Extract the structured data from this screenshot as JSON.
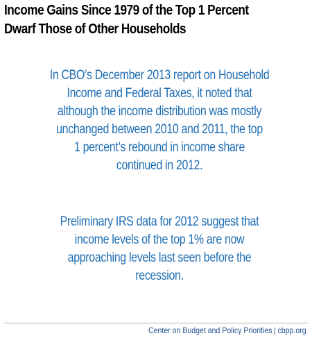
{
  "title": {
    "line1": "Income Gains Since 1979 of the Top 1 Percent",
    "line2": "Dwarf Those of Other Households"
  },
  "paragraph1": {
    "lines": [
      "In CBO’s December 2013 report on Household",
      "Income and Federal Taxes, it noted that",
      "although the income distribution was mostly",
      "unchanged between 2010 and 2011, the top",
      "1 percent’s rebound in income share",
      "continued in 2012."
    ]
  },
  "paragraph2": {
    "lines": [
      "Preliminary IRS data for 2012 suggest that",
      "income levels of the top 1% are now",
      "approaching levels last seen before the",
      "recession."
    ]
  },
  "footer": {
    "organization": "Center on Budget and Policy Priorities",
    "separator": "|",
    "website": "cbpp.org"
  },
  "colors": {
    "body_text": "#1f6eb3",
    "title": "#000000",
    "footer": "#1f4e8c"
  }
}
